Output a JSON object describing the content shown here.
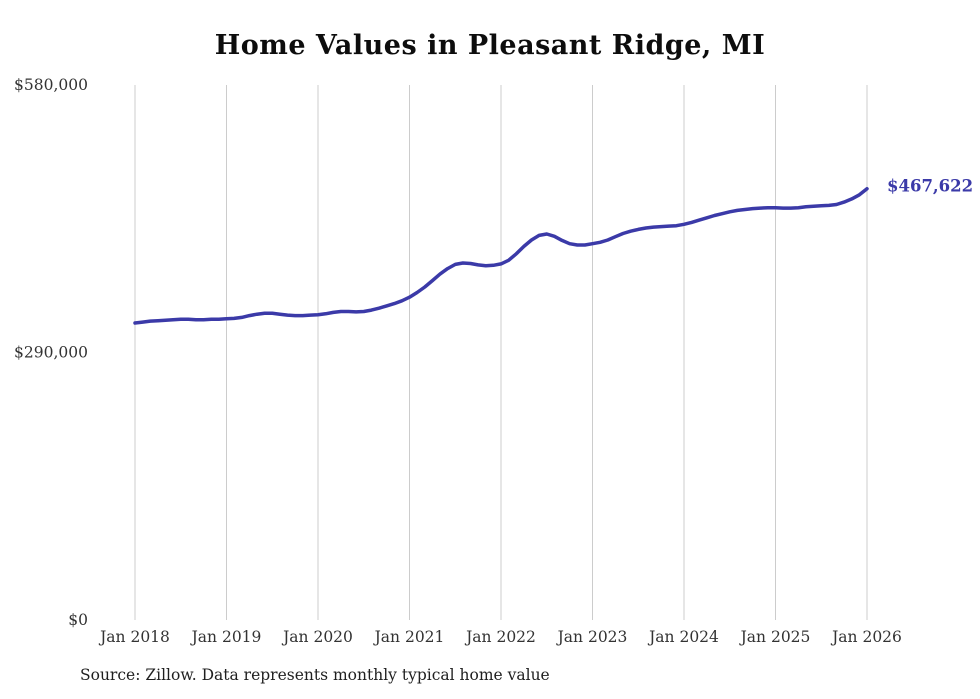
{
  "title": "Home Values in Pleasant Ridge, MI",
  "source": "Source: Zillow. Data represents monthly typical home value",
  "annotation": {
    "label": "$467,622"
  },
  "colors": {
    "line": "#3b3aa8",
    "annotation": "#3b3aa8",
    "grid": "#cccccc",
    "tick_text": "#333333",
    "title_text": "#0d0d0d"
  },
  "chart_data": {
    "type": "line",
    "title": "Home Values in Pleasant Ridge, MI",
    "xlabel": "",
    "ylabel": "",
    "ylim": [
      0,
      580000
    ],
    "y_ticks": [
      0,
      290000,
      580000
    ],
    "y_tick_labels": [
      "$0",
      "$290,000",
      "$580,000"
    ],
    "x_tick_labels": [
      "Jan 2018",
      "Jan 2019",
      "Jan 2020",
      "Jan 2021",
      "Jan 2022",
      "Jan 2023",
      "Jan 2024",
      "Jan 2025",
      "Jan 2026"
    ],
    "grid": "vertical",
    "legend": "none",
    "final_value_label": "$467,622",
    "x": [
      "2018-01",
      "2018-02",
      "2018-03",
      "2018-04",
      "2018-05",
      "2018-06",
      "2018-07",
      "2018-08",
      "2018-09",
      "2018-10",
      "2018-11",
      "2018-12",
      "2019-01",
      "2019-02",
      "2019-03",
      "2019-04",
      "2019-05",
      "2019-06",
      "2019-07",
      "2019-08",
      "2019-09",
      "2019-10",
      "2019-11",
      "2019-12",
      "2020-01",
      "2020-02",
      "2020-03",
      "2020-04",
      "2020-05",
      "2020-06",
      "2020-07",
      "2020-08",
      "2020-09",
      "2020-10",
      "2020-11",
      "2020-12",
      "2021-01",
      "2021-02",
      "2021-03",
      "2021-04",
      "2021-05",
      "2021-06",
      "2021-07",
      "2021-08",
      "2021-09",
      "2021-10",
      "2021-11",
      "2021-12",
      "2022-01",
      "2022-02",
      "2022-03",
      "2022-04",
      "2022-05",
      "2022-06",
      "2022-07",
      "2022-08",
      "2022-09",
      "2022-10",
      "2022-11",
      "2022-12",
      "2023-01",
      "2023-02",
      "2023-03",
      "2023-04",
      "2023-05",
      "2023-06",
      "2023-07",
      "2023-08",
      "2023-09",
      "2023-10",
      "2023-11",
      "2023-12",
      "2024-01",
      "2024-02",
      "2024-03",
      "2024-04",
      "2024-05",
      "2024-06",
      "2024-07",
      "2024-08",
      "2024-09",
      "2024-10",
      "2024-11",
      "2024-12",
      "2025-01",
      "2025-02",
      "2025-03",
      "2025-04",
      "2025-05",
      "2025-06",
      "2025-07",
      "2025-08",
      "2025-09",
      "2025-10",
      "2025-11",
      "2025-12",
      "2026-01"
    ],
    "values": [
      322000,
      323000,
      324000,
      324500,
      325000,
      325500,
      326000,
      326000,
      325500,
      325500,
      326000,
      326000,
      326500,
      327000,
      328000,
      330000,
      331500,
      332500,
      332500,
      331500,
      330500,
      330000,
      330000,
      330500,
      331000,
      332000,
      333500,
      334500,
      334500,
      334000,
      334500,
      336000,
      338000,
      340500,
      343000,
      346000,
      350000,
      355000,
      361000,
      368000,
      375000,
      381000,
      385500,
      387000,
      386500,
      385000,
      384000,
      384500,
      386000,
      390000,
      397000,
      405000,
      412000,
      417000,
      418500,
      416000,
      411500,
      408000,
      406500,
      406500,
      408000,
      409500,
      412000,
      415500,
      419000,
      421500,
      423500,
      425000,
      426000,
      426500,
      427000,
      427500,
      429000,
      431000,
      433500,
      436000,
      438500,
      440500,
      442500,
      444000,
      445000,
      446000,
      446500,
      447000,
      447000,
      446500,
      446500,
      447000,
      448000,
      448500,
      449000,
      449500,
      450500,
      453000,
      456500,
      461000,
      467622
    ]
  }
}
